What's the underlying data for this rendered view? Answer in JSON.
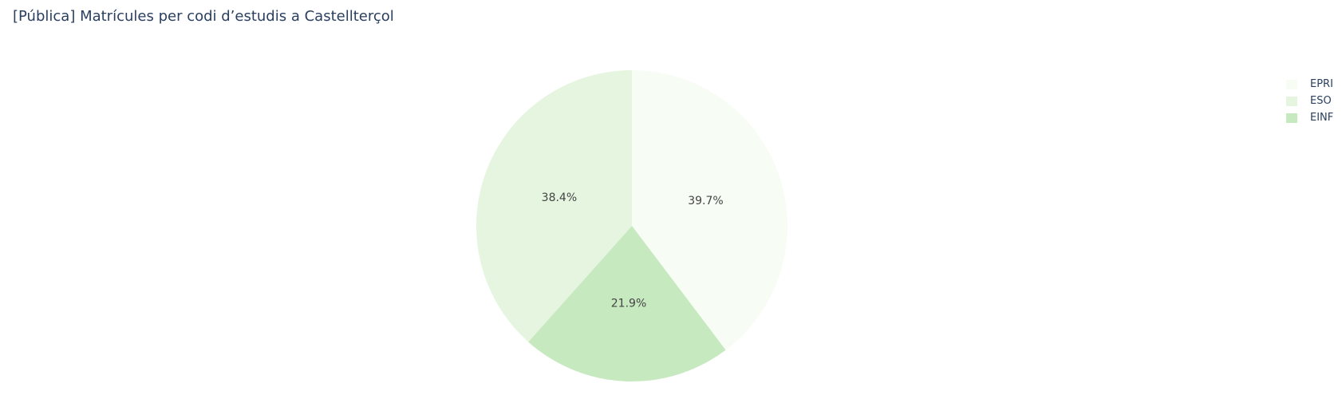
{
  "chart_data": {
    "type": "pie",
    "title": "[Pública] Matrícules per codi d’estudis a Castellterçol",
    "slices": [
      {
        "label": "EPRI",
        "value": 39.7,
        "display": "39.7%",
        "color": "#f7fcf5"
      },
      {
        "label": "EINF",
        "value": 21.9,
        "display": "21.9%",
        "color": "#c7e9c0"
      },
      {
        "label": "ESO",
        "value": 38.4,
        "display": "38.4%",
        "color": "#e5f5e0"
      }
    ],
    "legend": {
      "placement": "top-right",
      "entries": [
        {
          "label": "EPRI",
          "color": "#f7fcf5"
        },
        {
          "label": "ESO",
          "color": "#e5f5e0"
        },
        {
          "label": "EINF",
          "color": "#c7e9c0"
        }
      ]
    },
    "direction": "clockwise",
    "start": "top"
  }
}
